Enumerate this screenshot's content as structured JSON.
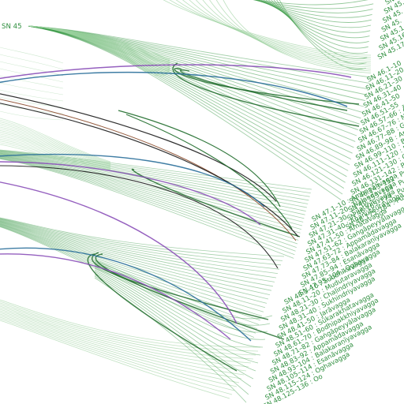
{
  "root_label": "SN 45",
  "groups": [
    {
      "name": "sn45",
      "labels": [
        "SN 45.",
        "SN 45.",
        "SN 45.",
        "SN 45.",
        "SN 45.14",
        "SN 45.16",
        "SN 45.171"
      ]
    },
    {
      "name": "sn46",
      "labels": [
        "SN 46.1–10",
        "SN 46.11–20",
        "SN 46.21–30",
        "SN 46.31–40",
        "SN 46.41–50",
        "SN 46.51–55",
        "SN 46.57–66 : Ā",
        "SN 46.67–76 : Nirodh",
        "SN 46.77–88 : Ga",
        "SN 46.89–98 : Appam",
        "SN 46.99–110 : Balakar",
        "SN 46.111–120 : Esan",
        "SN 46.121–130 : Ogha",
        "SN 46.131–142 : Punagang",
        "SN 46.143–152 : Punappam",
        "SN 46.153–164 : Punabala",
        "SN 46.165–174 : Punaesan",
        "SN 46.175–184 : Punaogha"
      ]
    },
    {
      "name": "sn47",
      "labels": [
        "SN 47.1–10 : Ambapālivagga",
        "SN 47.11–20 : Nālandavagga",
        "SN 47.21–30 : Sīlaṭṭhitivagga",
        "SN 47.31–40 : Ananussutavagga",
        "SN 47.41–50 : Amatavagga",
        "SN 47.51–62 : Gaṅgāpeyyālavagga",
        "SN 47.63–72 : Appamādavagga",
        "SN 47.73–84 : Balakaraṇīyavagga",
        "SN 47.85–94 : Esanāvagga",
        "SN 47.95–104 : Oghavagga"
      ]
    },
    {
      "name": "sn48",
      "labels": [
        "SN 48.1–10 : Suddhikavagga",
        "SN 48.11–20 : Mudutaravagga",
        "SN 48.21–30 : Chaḷindriyavagga",
        "SN 48.31–40 : Sukhindriyavagga",
        "SN 48.41–50 : Jarāvagga",
        "SN 48.51–60 : Sūkarakhatavagga",
        "SN 48.61–70 : Bodhipakkhiyavagga",
        "SN 48.71–82 : Gaṅgāpeyyālavagga",
        "SN 48.83–92 : Appamādavagga",
        "SN 48.93–104 : Balakaraṇīyavagga",
        "SN 48.105–114 : Esanāvagga",
        "SN 48.115–124 : Oghavagga",
        "SN 48.125–136 : Oo"
      ]
    }
  ],
  "colors": {
    "branch": "#3a9a46",
    "branch_light": "#9fd3a2",
    "dark_green": "#1e6b2a",
    "purple": "#8a4fb8",
    "blue": "#2a6f9a",
    "black": "#1a1a1a",
    "brown": "#8a4a2a",
    "label": "#2f8f3f"
  }
}
